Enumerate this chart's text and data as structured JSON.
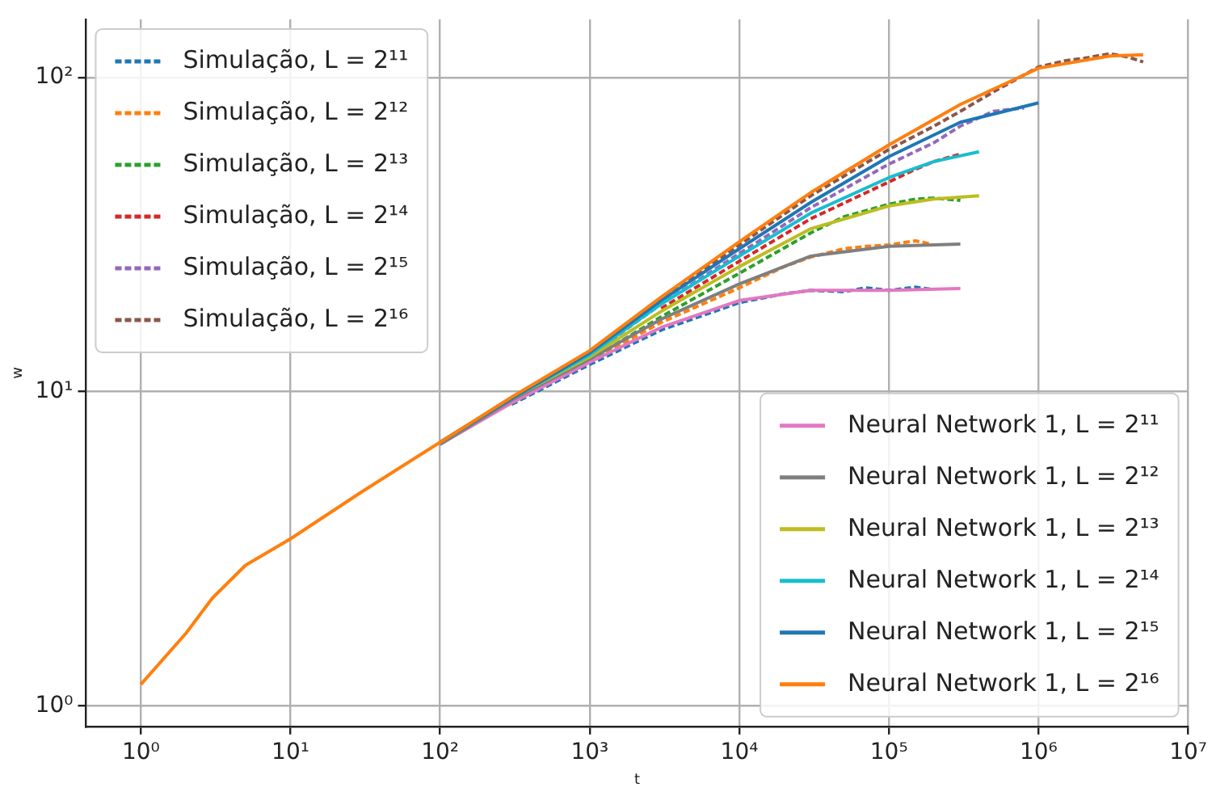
{
  "chart_data": {
    "type": "line",
    "xlabel": "t",
    "ylabel": "w",
    "log": "xy",
    "grid": true,
    "legend": [
      "top left",
      "bottom right"
    ],
    "marker": "none",
    "xlim": [
      0.43,
      10000000
    ],
    "ylim": [
      0.86,
      153
    ],
    "xticks": [
      {
        "value": 1,
        "label": "10⁰"
      },
      {
        "value": 10,
        "label": "10¹"
      },
      {
        "value": 100,
        "label": "10²"
      },
      {
        "value": 1000,
        "label": "10³"
      },
      {
        "value": 10000,
        "label": "10⁴"
      },
      {
        "value": 100000,
        "label": "10⁵"
      },
      {
        "value": 1000000,
        "label": "10⁶"
      },
      {
        "value": 10000000,
        "label": "10⁷"
      }
    ],
    "yticks": [
      {
        "value": 1,
        "label": "10⁰"
      },
      {
        "value": 10,
        "label": "10¹"
      },
      {
        "value": 100,
        "label": "10²"
      }
    ],
    "series": [
      {
        "name": "Simulação, L = 2¹¹",
        "color": "#1f77b4",
        "line_style": "dashed",
        "x": [
          300,
          1000,
          3000,
          10000,
          20000,
          30000,
          50000,
          70000,
          100000,
          150000,
          190000
        ],
        "values": [
          9.1,
          12.2,
          15.7,
          19.2,
          20.5,
          21,
          20.8,
          21.4,
          21,
          21.5,
          21.2
        ]
      },
      {
        "name": "Simulação, L = 2¹²",
        "color": "#ff7f0e",
        "line_style": "dashed",
        "x": [
          300,
          1000,
          3000,
          10000,
          20000,
          30000,
          50000,
          70000,
          100000,
          150000,
          190000
        ],
        "values": [
          9.3,
          12.5,
          16.6,
          21.4,
          25,
          26.8,
          28.5,
          29,
          29.3,
          30.2,
          29.5
        ]
      },
      {
        "name": "Simulação, L = 2¹³",
        "color": "#2ca02c",
        "line_style": "dashed",
        "x": [
          1000,
          3000,
          10000,
          30000,
          50000,
          100000,
          150000,
          200000,
          300000
        ],
        "values": [
          12.6,
          17.3,
          23.8,
          32,
          36,
          39.5,
          41,
          41.3,
          40.6
        ]
      },
      {
        "name": "Simulação, L = 2¹⁴",
        "color": "#d62728",
        "line_style": "dashed",
        "x": [
          3000,
          10000,
          30000,
          100000,
          150000,
          200000,
          300000
        ],
        "values": [
          18.4,
          26,
          35.5,
          46.5,
          51,
          54,
          57
        ]
      },
      {
        "name": "Simulação, L = 2¹⁵",
        "color": "#9467bd",
        "line_style": "dashed",
        "x": [
          300,
          1000,
          3000,
          10000,
          30000,
          100000,
          200000,
          300000,
          500000,
          800000
        ],
        "values": [
          9.4,
          13,
          19,
          27.5,
          38.5,
          53,
          62,
          70,
          78,
          80
        ]
      },
      {
        "name": "Simulação, L = 2¹⁶",
        "color": "#8c564b",
        "line_style": "dashed",
        "x": [
          300,
          1000,
          3000,
          10000,
          30000,
          100000,
          200000,
          300000,
          500000,
          1000000,
          1500000,
          2000000,
          3000000,
          4000000,
          5000000
        ],
        "values": [
          9.5,
          13.3,
          19.6,
          29.3,
          42,
          59,
          70,
          78,
          90,
          108,
          113,
          115,
          119,
          116,
          112
        ]
      },
      {
        "name": "Neural Network 1, L = 2¹¹",
        "color": "#e377c2",
        "line_style": "solid",
        "x": [
          100,
          300,
          1000,
          3000,
          10000,
          30000,
          100000,
          300000
        ],
        "values": [
          6.8,
          9.2,
          12.4,
          16,
          19.5,
          21,
          21,
          21.3
        ]
      },
      {
        "name": "Neural Network 1, L = 2¹²",
        "color": "#7f7f7f",
        "line_style": "solid",
        "x": [
          100,
          300,
          1000,
          3000,
          10000,
          30000,
          100000,
          300000
        ],
        "values": [
          6.8,
          9.4,
          12.7,
          17,
          22,
          27,
          29,
          29.5
        ]
      },
      {
        "name": "Neural Network 1, L = 2¹³",
        "color": "#bcbd22",
        "line_style": "solid",
        "x": [
          100,
          300,
          1000,
          3000,
          10000,
          30000,
          100000,
          200000,
          400000
        ],
        "values": [
          6.9,
          9.5,
          12.9,
          18,
          25,
          33,
          39,
          41,
          42
        ]
      },
      {
        "name": "Neural Network 1, L = 2¹⁴",
        "color": "#17becf",
        "line_style": "solid",
        "x": [
          100,
          300,
          1000,
          3000,
          10000,
          30000,
          100000,
          200000,
          400000
        ],
        "values": [
          6.9,
          9.5,
          13.1,
          19,
          27,
          37,
          48,
          54,
          58
        ]
      },
      {
        "name": "Neural Network 1, L = 2¹⁵",
        "color": "#1f77b4",
        "line_style": "solid",
        "x": [
          100,
          300,
          1000,
          3000,
          10000,
          30000,
          100000,
          300000,
          1000000
        ],
        "values": [
          6.9,
          9.5,
          13.3,
          19.5,
          28.5,
          40,
          56,
          72,
          83
        ]
      },
      {
        "name": "Neural Network 1, L = 2¹⁶",
        "color": "#ff7f0e",
        "line_style": "solid",
        "x": [
          1,
          2,
          3,
          5,
          10,
          30,
          100,
          300,
          1000,
          3000,
          10000,
          30000,
          100000,
          300000,
          1000000,
          3000000,
          5000000
        ],
        "values": [
          1.17,
          1.7,
          2.2,
          2.8,
          3.4,
          4.8,
          6.9,
          9.6,
          13.5,
          20,
          30,
          43,
          61,
          82,
          107,
          117,
          118
        ]
      }
    ]
  }
}
